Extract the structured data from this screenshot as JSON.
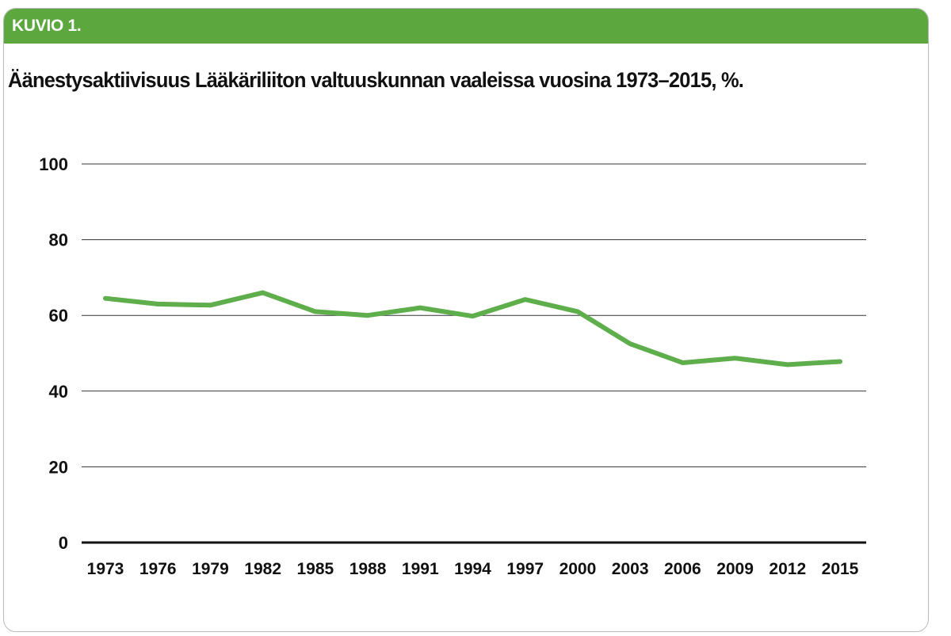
{
  "figure_label": "KUVIO 1.",
  "colors": {
    "header": "#5da83e",
    "line": "#5fae4c",
    "grid": "#333333",
    "axis": "#111111"
  },
  "chart_data": {
    "type": "line",
    "title": "Äänestysaktiivisuus Lääkäriliiton valtuuskunnan vaaleissa vuosina 1973–2015, %.",
    "xlabel": "",
    "ylabel": "",
    "ylim": [
      0,
      100
    ],
    "yticks": [
      "0",
      "20",
      "40",
      "60",
      "80",
      "100"
    ],
    "grid": true,
    "categories": [
      "1973",
      "1976",
      "1979",
      "1982",
      "1985",
      "1988",
      "1991",
      "1994",
      "1997",
      "2000",
      "2003",
      "2006",
      "2009",
      "2012",
      "2015"
    ],
    "series": [
      {
        "name": "Äänestysaktiivisuus",
        "values": [
          64.5,
          63.0,
          62.7,
          66.0,
          61.0,
          60.0,
          62.0,
          59.8,
          64.2,
          61.0,
          52.5,
          47.5,
          48.7,
          47.0,
          47.8
        ]
      }
    ]
  }
}
